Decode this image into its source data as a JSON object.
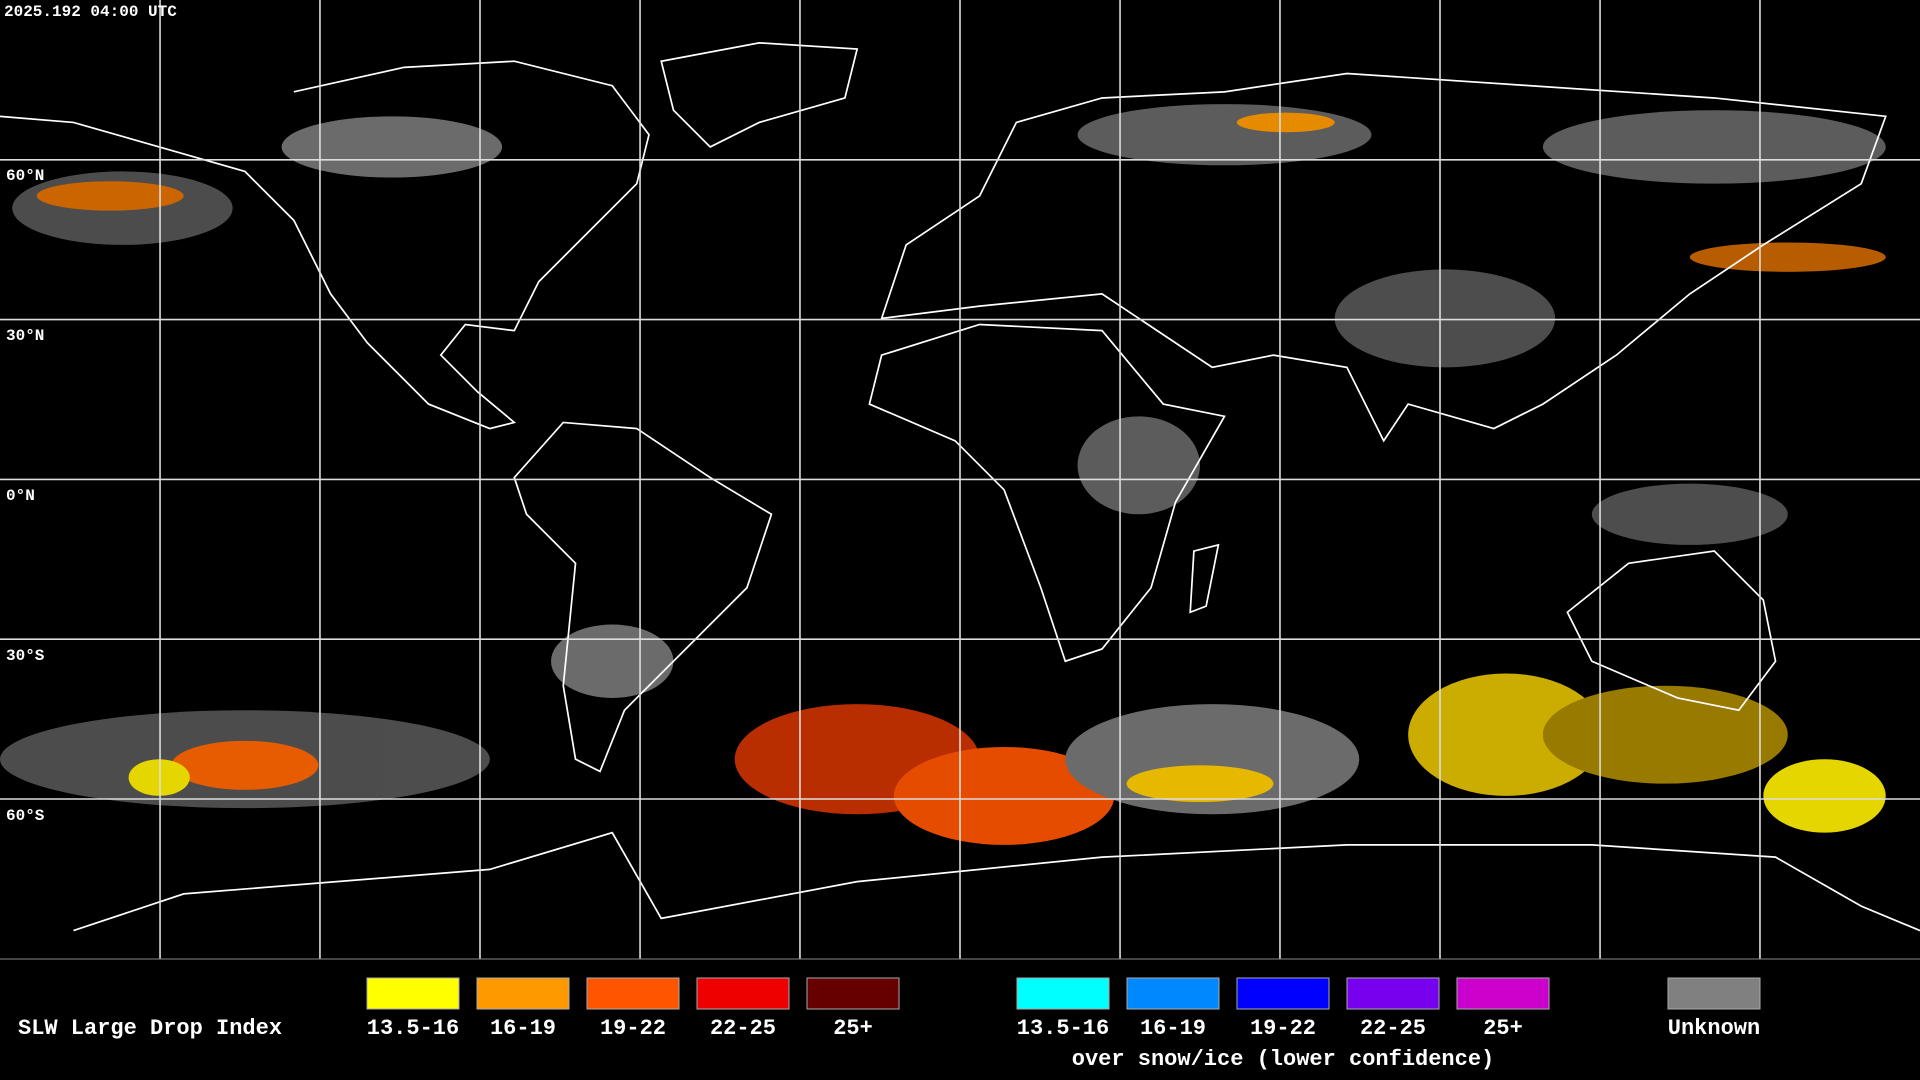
{
  "timestamp": "2025.192 04:00 UTC",
  "latitude_labels": [
    "60°N",
    "30°N",
    "0°N",
    "30°S",
    "60°S"
  ],
  "legend": {
    "title": "SLW Large Drop Index",
    "liquid": [
      {
        "label": "13.5-16",
        "color": "#ffff00"
      },
      {
        "label": "16-19",
        "color": "#ff9900"
      },
      {
        "label": "19-22",
        "color": "#ff5500"
      },
      {
        "label": "22-25",
        "color": "#ee0000"
      },
      {
        "label": "25+",
        "color": "#660000"
      }
    ],
    "snow_ice": [
      {
        "label": "13.5-16",
        "color": "#00ffff"
      },
      {
        "label": "16-19",
        "color": "#0088ff"
      },
      {
        "label": "19-22",
        "color": "#0000ff"
      },
      {
        "label": "22-25",
        "color": "#7700ee"
      },
      {
        "label": "25+",
        "color": "#cc00cc"
      }
    ],
    "snow_ice_note": "over snow/ice (lower confidence)",
    "unknown": {
      "label": "Unknown",
      "color": "#808080"
    }
  }
}
